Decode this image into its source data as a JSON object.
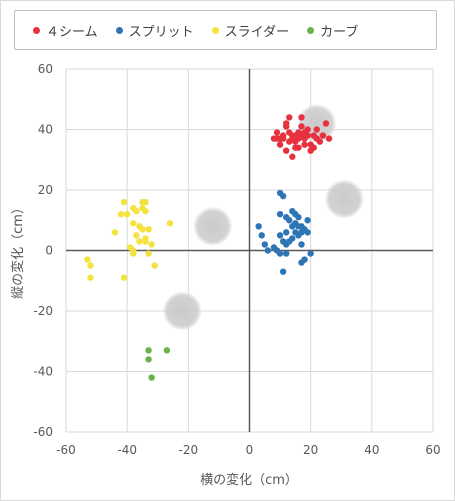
{
  "colors": {
    "grid": "#d9d9d9",
    "axis": "#595959",
    "tick_text": "#595959",
    "label_text": "#595959",
    "ghost": "#a6a6a6"
  },
  "chart_data": {
    "type": "scatter",
    "xlabel": "横の変化（cm）",
    "ylabel": "縦の変化（cm）",
    "xlim": [
      -60,
      60
    ],
    "ylim": [
      -60,
      60
    ],
    "xticks": [
      -60,
      -40,
      -20,
      0,
      20,
      40,
      60
    ],
    "yticks": [
      -60,
      -40,
      -20,
      0,
      20,
      40,
      60
    ],
    "x_tick_labels": [
      "-60",
      "-40",
      "-20",
      "0",
      "20",
      "40",
      "60"
    ],
    "y_tick_labels": [
      "-60",
      "-40",
      "-20",
      "0",
      "20",
      "40",
      "60"
    ],
    "grid": true,
    "legend_position": "top",
    "series": [
      {
        "name": "４シーム",
        "color": "#e8313f",
        "points": [
          [
            8,
            37
          ],
          [
            9,
            39
          ],
          [
            10,
            37
          ],
          [
            11,
            38
          ],
          [
            12,
            41
          ],
          [
            12,
            42
          ],
          [
            13,
            39
          ],
          [
            13,
            36
          ],
          [
            14,
            38
          ],
          [
            14,
            37
          ],
          [
            15,
            38
          ],
          [
            15,
            36
          ],
          [
            16,
            37
          ],
          [
            16,
            39
          ],
          [
            17,
            38
          ],
          [
            17,
            41
          ],
          [
            18,
            37
          ],
          [
            18,
            39
          ],
          [
            19,
            40
          ],
          [
            19,
            38
          ],
          [
            20,
            35
          ],
          [
            20,
            33
          ],
          [
            21,
            34
          ],
          [
            21,
            38
          ],
          [
            12,
            33
          ],
          [
            14,
            31
          ],
          [
            16,
            34
          ],
          [
            22,
            37
          ],
          [
            23,
            36
          ],
          [
            25,
            42
          ],
          [
            26,
            37
          ],
          [
            17,
            44
          ],
          [
            13,
            44
          ],
          [
            11,
            37
          ],
          [
            10,
            35
          ],
          [
            18,
            35
          ],
          [
            15,
            34
          ],
          [
            9,
            37
          ],
          [
            22,
            40
          ],
          [
            24,
            38
          ]
        ]
      },
      {
        "name": "スプリット",
        "color": "#2e75b6",
        "points": [
          [
            10,
            19
          ],
          [
            11,
            18
          ],
          [
            10,
            12
          ],
          [
            12,
            11
          ],
          [
            13,
            10
          ],
          [
            14,
            13
          ],
          [
            15,
            9
          ],
          [
            16,
            11
          ],
          [
            17,
            8
          ],
          [
            16,
            5
          ],
          [
            15,
            6
          ],
          [
            14,
            4
          ],
          [
            13,
            3
          ],
          [
            12,
            2
          ],
          [
            11,
            3
          ],
          [
            12,
            -1
          ],
          [
            10,
            -1
          ],
          [
            9,
            0
          ],
          [
            8,
            1
          ],
          [
            3,
            8
          ],
          [
            4,
            5
          ],
          [
            5,
            2
          ],
          [
            10,
            5
          ],
          [
            12,
            6
          ],
          [
            14,
            8
          ],
          [
            16,
            8
          ],
          [
            17,
            6
          ],
          [
            18,
            7
          ],
          [
            19,
            6
          ],
          [
            20,
            -1
          ],
          [
            18,
            -3
          ],
          [
            17,
            -4
          ],
          [
            11,
            -7
          ],
          [
            17,
            2
          ],
          [
            19,
            10
          ],
          [
            6,
            0
          ],
          [
            15,
            12
          ]
        ]
      },
      {
        "name": "スライダー",
        "color": "#f4e23e",
        "points": [
          [
            -41,
            16
          ],
          [
            -38,
            14
          ],
          [
            -37,
            13
          ],
          [
            -35,
            16
          ],
          [
            -34,
            16
          ],
          [
            -35,
            14
          ],
          [
            -34,
            13
          ],
          [
            -40,
            12
          ],
          [
            -42,
            12
          ],
          [
            -38,
            9
          ],
          [
            -36,
            8
          ],
          [
            -33,
            7
          ],
          [
            -37,
            5
          ],
          [
            -36,
            3
          ],
          [
            -34,
            3
          ],
          [
            -32,
            2
          ],
          [
            -26,
            9
          ],
          [
            -35,
            7
          ],
          [
            -39,
            1
          ],
          [
            -38,
            0
          ],
          [
            -38,
            -1
          ],
          [
            -31,
            -5
          ],
          [
            -33,
            -1
          ],
          [
            -44,
            6
          ],
          [
            -53,
            -3
          ],
          [
            -52,
            -5
          ],
          [
            -52,
            -9
          ],
          [
            -41,
            -9
          ],
          [
            -34,
            4
          ]
        ]
      },
      {
        "name": "カーブ",
        "color": "#6ab04c",
        "points": [
          [
            -33,
            -33
          ],
          [
            -27,
            -33
          ],
          [
            -33,
            -36
          ],
          [
            -32,
            -42
          ]
        ]
      }
    ],
    "ghost_markers": [
      [
        22,
        42
      ],
      [
        31,
        17
      ],
      [
        -12,
        8
      ],
      [
        -22,
        -20
      ]
    ]
  }
}
